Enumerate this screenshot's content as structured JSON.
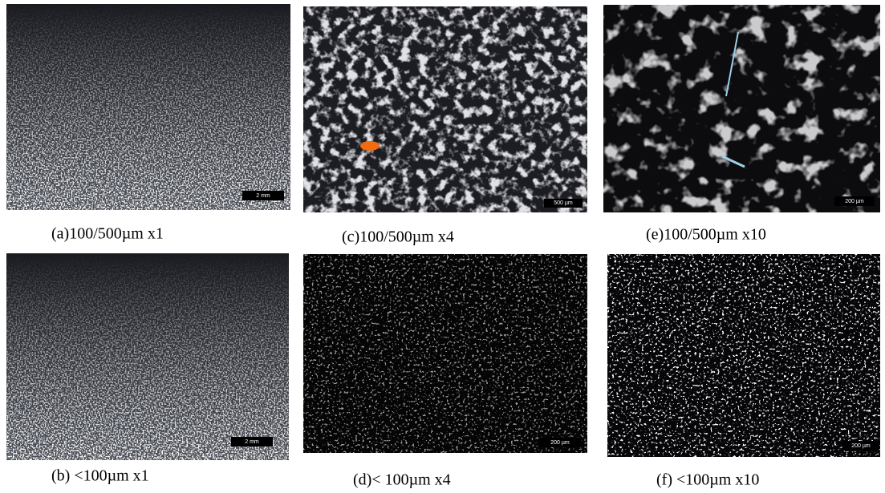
{
  "panels": [
    {
      "caption": "(a)100/500µm  x1",
      "scale_label": "2 mm"
    },
    {
      "caption": "(c)100/500µm  x4",
      "scale_label": "500 µm"
    },
    {
      "caption": "(e)100/500µm  x10",
      "scale_label": "200 µm"
    },
    {
      "caption": "(b) <100µm  x1",
      "scale_label": "2 mm"
    },
    {
      "caption": "(d)< 100µm  x4",
      "scale_label": "200 µm"
    },
    {
      "caption": "(f) <100µm  x10",
      "scale_label": "200 µm"
    }
  ]
}
